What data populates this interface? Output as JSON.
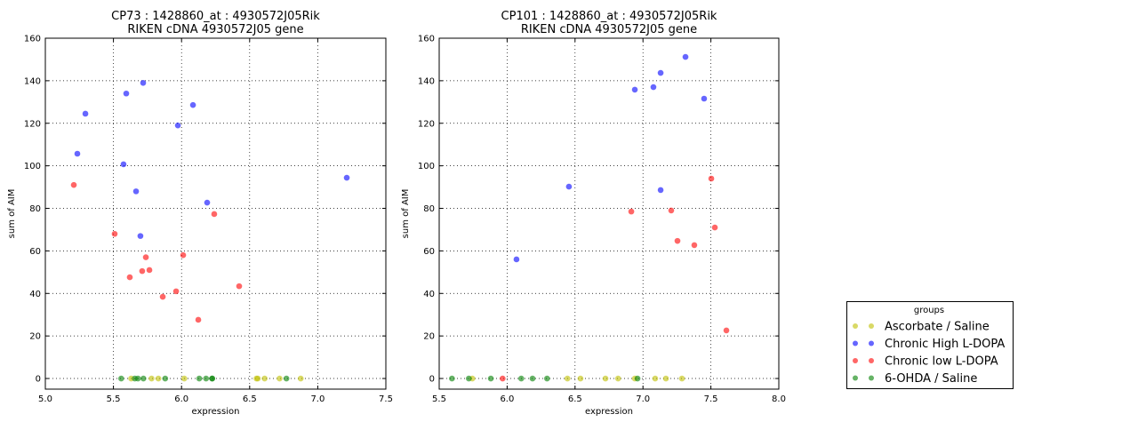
{
  "chart_data": [
    {
      "type": "scatter",
      "title": "CP73 : 1428860_at : 4930572J05Rik",
      "subtitle": "RIKEN cDNA 4930572J05 gene",
      "xlabel": "expression",
      "ylabel": "sum of AIM",
      "xlim": [
        5.0,
        7.5
      ],
      "ylim": [
        -5,
        160
      ],
      "xticks": [
        "5.0",
        "5.5",
        "6.0",
        "6.5",
        "7.0",
        "7.5"
      ],
      "yticks": [
        "0",
        "20",
        "40",
        "60",
        "80",
        "100",
        "120",
        "140",
        "160"
      ],
      "grid": true,
      "series": [
        {
          "name": "Ascorbate / Saline",
          "x": [
            5.63,
            5.78,
            5.83,
            6.02,
            6.55,
            6.56,
            6.61,
            6.72,
            6.875
          ],
          "y": [
            0,
            0,
            0,
            0,
            0,
            0,
            0,
            0,
            0
          ]
        },
        {
          "name": "Chronic High L-DOPA",
          "x": [
            5.235,
            5.294,
            5.594,
            5.718,
            5.574,
            5.666,
            5.698,
            5.973,
            6.084,
            6.188,
            7.213
          ],
          "y": [
            105.7,
            124.5,
            134,
            139,
            100.7,
            88,
            67,
            119,
            128.6,
            82.7,
            94.4
          ]
        },
        {
          "name": "Chronic low L-DOPA",
          "x": [
            5.209,
            5.509,
            5.62,
            5.711,
            5.738,
            5.764,
            5.862,
            5.96,
            6.012,
            6.123,
            6.24,
            6.423
          ],
          "y": [
            91,
            68,
            47.6,
            50.5,
            57,
            51,
            38.4,
            41,
            58,
            27.6,
            77.3,
            43.4
          ]
        },
        {
          "name": "6-OHDA / Saline",
          "x": [
            5.557,
            5.657,
            5.68,
            5.72,
            5.88,
            6.13,
            6.18,
            6.225,
            6.225,
            6.77
          ],
          "y": [
            0,
            0,
            0,
            0,
            0,
            0,
            0,
            0,
            0,
            0
          ]
        }
      ]
    },
    {
      "type": "scatter",
      "title": "CP101 : 1428860_at : 4930572J05Rik",
      "subtitle": "RIKEN cDNA 4930572J05 gene",
      "xlabel": "expression",
      "ylabel": "sum of AIM",
      "xlim": [
        5.5,
        8.0
      ],
      "ylim": [
        -5,
        160
      ],
      "xticks": [
        "5.5",
        "6.0",
        "6.5",
        "7.0",
        "7.5",
        "8.0"
      ],
      "yticks": [
        "0",
        "20",
        "40",
        "60",
        "80",
        "100",
        "120",
        "140",
        "160"
      ],
      "grid": true,
      "series": [
        {
          "name": "Ascorbate / Saline",
          "x": [
            5.744,
            6.444,
            6.54,
            6.724,
            6.817,
            6.94,
            7.09,
            7.169,
            7.287
          ],
          "y": [
            0,
            0,
            0,
            0,
            0,
            0,
            0,
            0,
            0
          ]
        },
        {
          "name": "Chronic High L-DOPA",
          "x": [
            6.069,
            6.455,
            6.94,
            7.077,
            7.13,
            7.313,
            7.13,
            7.45
          ],
          "y": [
            56,
            90.2,
            135.8,
            137,
            143.7,
            151.2,
            88.6,
            131.6
          ]
        },
        {
          "name": "Chronic low L-DOPA",
          "x": [
            5.967,
            6.914,
            7.208,
            7.254,
            7.378,
            7.503,
            7.529,
            7.614
          ],
          "y": [
            0,
            78.5,
            79,
            64.7,
            62.7,
            94,
            71,
            22.6
          ]
        },
        {
          "name": "6-OHDA / Saline",
          "x": [
            5.594,
            5.718,
            5.88,
            6.104,
            6.187,
            6.294,
            6.96
          ],
          "y": [
            0,
            0,
            0,
            0,
            0,
            0,
            0
          ]
        }
      ]
    }
  ],
  "legend": {
    "title": "groups",
    "placement": "lower-right",
    "items": [
      "Ascorbate / Saline",
      "Chronic High L-DOPA",
      "Chronic low L-DOPA",
      "6-OHDA / Saline"
    ]
  },
  "colors": {
    "Ascorbate / Saline": "#bfbf00",
    "Chronic High L-DOPA": "#0000ff",
    "Chronic low L-DOPA": "#ff0000",
    "6-OHDA / Saline": "#008000"
  }
}
